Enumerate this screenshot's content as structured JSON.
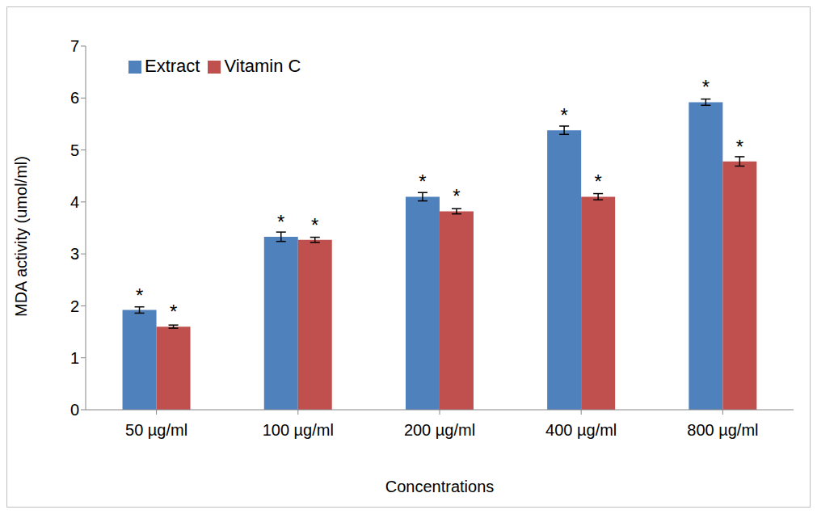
{
  "chart_data": {
    "type": "bar",
    "categories": [
      "50 µg/ml",
      "100 µg/ml",
      "200 µg/ml",
      "400 µg/ml",
      "800 µg/ml"
    ],
    "series": [
      {
        "name": "Extract",
        "color": "#4f81bd",
        "values": [
          1.92,
          3.33,
          4.1,
          5.38,
          5.92
        ],
        "errors": [
          0.06,
          0.09,
          0.08,
          0.08,
          0.06
        ],
        "significance": [
          "*",
          "*",
          "*",
          "*",
          "*"
        ]
      },
      {
        "name": "Vitamin C",
        "color": "#c0504d",
        "values": [
          1.6,
          3.27,
          3.82,
          4.1,
          4.78
        ],
        "errors": [
          0.03,
          0.05,
          0.05,
          0.06,
          0.09
        ],
        "significance": [
          "*",
          "*",
          "*",
          "*",
          "*"
        ]
      }
    ],
    "xlabel": "Concentrations",
    "ylabel": "MDA activity (umol/ml)",
    "ylim": [
      0,
      7
    ],
    "yticks": [
      0,
      1,
      2,
      3,
      4,
      5,
      6,
      7
    ],
    "grid": false,
    "legend": "upper left"
  }
}
